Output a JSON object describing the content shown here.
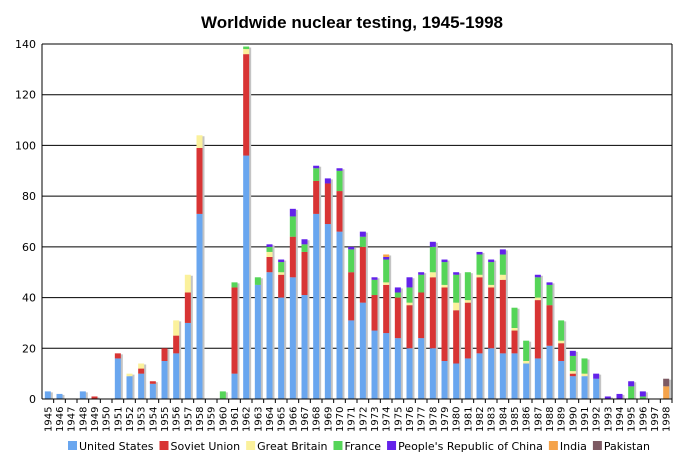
{
  "chart_data": {
    "type": "bar",
    "stacked": true,
    "title": "Worldwide nuclear testing, 1945-1998",
    "xlabel": "",
    "ylabel": "",
    "ylim": [
      0,
      140
    ],
    "yticks": [
      0,
      20,
      40,
      60,
      80,
      100,
      120,
      140
    ],
    "grid": true,
    "legend_position": "bottom",
    "categories": [
      "1945",
      "1946",
      "1947",
      "1948",
      "1949",
      "1950",
      "1951",
      "1952",
      "1953",
      "1954",
      "1955",
      "1956",
      "1957",
      "1958",
      "1959",
      "1960",
      "1961",
      "1962",
      "1963",
      "1964",
      "1965",
      "1966",
      "1967",
      "1968",
      "1969",
      "1970",
      "1971",
      "1972",
      "1973",
      "1974",
      "1975",
      "1976",
      "1977",
      "1978",
      "1979",
      "1980",
      "1981",
      "1982",
      "1983",
      "1984",
      "1985",
      "1986",
      "1987",
      "1988",
      "1989",
      "1990",
      "1991",
      "1992",
      "1993",
      "1994",
      "1995",
      "1996",
      "1997",
      "1998"
    ],
    "series": [
      {
        "name": "United States",
        "color": "#69a6ef",
        "values": [
          3,
          2,
          0,
          3,
          0,
          0,
          16,
          9,
          10,
          6,
          15,
          18,
          30,
          73,
          0,
          0,
          10,
          96,
          45,
          50,
          40,
          48,
          41,
          73,
          69,
          66,
          31,
          38,
          27,
          26,
          24,
          20,
          24,
          20,
          15,
          14,
          16,
          18,
          20,
          18,
          18,
          14,
          16,
          21,
          15,
          9,
          9,
          8,
          0,
          0,
          0,
          0,
          0,
          0
        ]
      },
      {
        "name": "Soviet Union",
        "color": "#d83434",
        "values": [
          0,
          0,
          0,
          0,
          1,
          0,
          2,
          0,
          2,
          1,
          5,
          7,
          12,
          26,
          0,
          0,
          34,
          40,
          0,
          6,
          9,
          16,
          17,
          13,
          16,
          16,
          19,
          22,
          14,
          19,
          16,
          17,
          18,
          28,
          29,
          21,
          22,
          30,
          24,
          29,
          9,
          0,
          23,
          16,
          7,
          1,
          0,
          0,
          0,
          0,
          0,
          0,
          0,
          0
        ]
      },
      {
        "name": "Great Britain",
        "color": "#fbf19c",
        "values": [
          0,
          0,
          0,
          0,
          0,
          0,
          0,
          1,
          2,
          0,
          0,
          6,
          7,
          5,
          0,
          0,
          0,
          2,
          0,
          2,
          1,
          0,
          0,
          0,
          0,
          0,
          0,
          0,
          0,
          1,
          0,
          1,
          0,
          2,
          1,
          3,
          1,
          1,
          1,
          2,
          1,
          1,
          1,
          0,
          1,
          1,
          1,
          0,
          0,
          0,
          0,
          0,
          0,
          0
        ]
      },
      {
        "name": "France",
        "color": "#55d558",
        "values": [
          0,
          0,
          0,
          0,
          0,
          0,
          0,
          0,
          0,
          0,
          0,
          0,
          0,
          0,
          0,
          3,
          2,
          1,
          3,
          2,
          4,
          8,
          3,
          5,
          0,
          8,
          9,
          4,
          6,
          9,
          2,
          6,
          7,
          10,
          9,
          11,
          11,
          8,
          9,
          8,
          8,
          8,
          8,
          8,
          8,
          6,
          6,
          0,
          0,
          0,
          5,
          1,
          0,
          0
        ]
      },
      {
        "name": "People's Republic of China",
        "color": "#6322ea",
        "values": [
          0,
          0,
          0,
          0,
          0,
          0,
          0,
          0,
          0,
          0,
          0,
          0,
          0,
          0,
          0,
          0,
          0,
          0,
          0,
          1,
          1,
          3,
          2,
          1,
          2,
          1,
          1,
          2,
          1,
          1,
          2,
          4,
          1,
          2,
          1,
          1,
          0,
          1,
          1,
          2,
          0,
          0,
          1,
          1,
          0,
          2,
          0,
          2,
          1,
          2,
          2,
          2,
          0,
          0
        ]
      },
      {
        "name": "India",
        "color": "#f5a34a",
        "values": [
          0,
          0,
          0,
          0,
          0,
          0,
          0,
          0,
          0,
          0,
          0,
          0,
          0,
          0,
          0,
          0,
          0,
          0,
          0,
          0,
          0,
          0,
          0,
          0,
          0,
          0,
          0,
          0,
          0,
          1,
          0,
          0,
          0,
          0,
          0,
          0,
          0,
          0,
          0,
          0,
          0,
          0,
          0,
          0,
          0,
          0,
          0,
          0,
          0,
          0,
          0,
          0,
          0,
          5
        ]
      },
      {
        "name": "Pakistan",
        "color": "#7d5a63",
        "values": [
          0,
          0,
          0,
          0,
          0,
          0,
          0,
          0,
          0,
          0,
          0,
          0,
          0,
          0,
          0,
          0,
          0,
          0,
          0,
          0,
          0,
          0,
          0,
          0,
          0,
          0,
          0,
          0,
          0,
          0,
          0,
          0,
          0,
          0,
          0,
          0,
          0,
          0,
          0,
          0,
          0,
          0,
          0,
          0,
          0,
          0,
          0,
          0,
          0,
          0,
          0,
          0,
          0,
          3
        ]
      }
    ]
  }
}
